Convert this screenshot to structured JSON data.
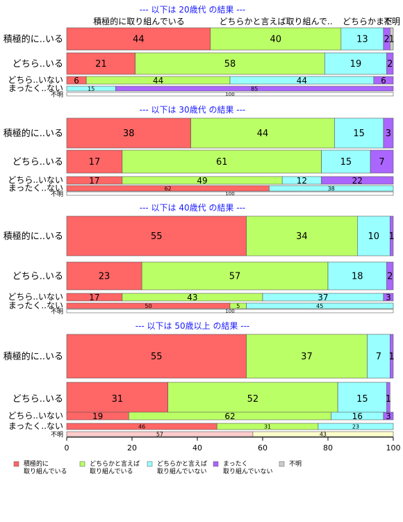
{
  "chart_data": {
    "type": "bar",
    "orientation": "horizontal",
    "stacked": true,
    "xlim": [
      0,
      100
    ],
    "x_ticks": [
      0,
      20,
      40,
      60,
      80,
      100
    ],
    "grid": false,
    "legend_position": "bottom",
    "col_headers": [
      "積極的に取り組んでいる",
      "どちらかと言えば取り組んで..",
      "どちらかまだ",
      "不明"
    ],
    "legend": [
      {
        "label": "積極的に\n取り組んでいる",
        "color": "#ff6666"
      },
      {
        "label": "どちらかと言えば\n取り組んでいる",
        "color": "#bbff66"
      },
      {
        "label": "どちらかと言えば\n取り組んでいない",
        "color": "#99ffff"
      },
      {
        "label": "まったく\n取り組んでいない",
        "color": "#aa66ff"
      },
      {
        "label": "不明",
        "color": "#cccccc"
      }
    ],
    "panels": [
      {
        "title": "--- 以下は 20歳代 の結果 ---",
        "rows": [
          {
            "label": "積極的に..いる",
            "values": [
              44,
              40,
              13,
              2,
              1
            ],
            "value_labels": [
              "44",
              "40",
              "13",
              "2",
              "1"
            ]
          },
          {
            "label": "どちら..いる",
            "values": [
              21,
              58,
              19,
              2
            ],
            "value_labels": [
              "21",
              "58",
              "19",
              "2"
            ]
          },
          {
            "label": "どちら..いない",
            "values": [
              6,
              44,
              44,
              6
            ],
            "value_labels": [
              "6",
              "44",
              "44",
              "6"
            ]
          },
          {
            "label": "まったく..ない",
            "values": [
              0,
              15,
              85
            ],
            "value_labels": [
              "",
              "15",
              "85"
            ],
            "colors": [
              "#ff6666",
              "#99ffff",
              "#aa66ff"
            ]
          },
          {
            "label": "不明",
            "values": [
              100
            ],
            "value_labels": [
              "100"
            ],
            "colors": [
              "#ffffff"
            ]
          }
        ]
      },
      {
        "title": "--- 以下は 30歳代 の結果 ---",
        "rows": [
          {
            "label": "積極的に..いる",
            "values": [
              38,
              44,
              15,
              3
            ],
            "value_labels": [
              "38",
              "44",
              "15",
              "3"
            ]
          },
          {
            "label": "どちら..いる",
            "values": [
              17,
              61,
              15,
              7
            ],
            "value_labels": [
              "17",
              "61",
              "15",
              "7"
            ]
          },
          {
            "label": "どちら..いない",
            "values": [
              17,
              49,
              12,
              22
            ],
            "value_labels": [
              "17",
              "49",
              "12",
              "22"
            ]
          },
          {
            "label": "まったく..ない",
            "values": [
              62,
              38
            ],
            "value_labels": [
              "62",
              "38"
            ],
            "colors": [
              "#ff6666",
              "#99ffff"
            ]
          },
          {
            "label": "不明",
            "values": [
              100
            ],
            "value_labels": [
              "100"
            ],
            "colors": [
              "#ffffff"
            ]
          }
        ]
      },
      {
        "title": "--- 以下は 40歳代 の結果 ---",
        "rows": [
          {
            "label": "積極的に..いる",
            "values": [
              55,
              34,
              10,
              1
            ],
            "value_labels": [
              "55",
              "34",
              "10",
              "1"
            ]
          },
          {
            "label": "どちら..いる",
            "values": [
              23,
              57,
              18,
              2
            ],
            "value_labels": [
              "23",
              "57",
              "18",
              "2"
            ]
          },
          {
            "label": "どちら..いない",
            "values": [
              17,
              43,
              37,
              3
            ],
            "value_labels": [
              "17",
              "43",
              "37",
              "3"
            ]
          },
          {
            "label": "まったく..ない",
            "values": [
              50,
              5,
              45
            ],
            "value_labels": [
              "50",
              "5",
              "45"
            ]
          },
          {
            "label": "不明",
            "values": [
              100
            ],
            "value_labels": [
              "100"
            ],
            "colors": [
              "#ffffff"
            ]
          }
        ]
      },
      {
        "title": "--- 以下は 50歳以上 の結果 ---",
        "rows": [
          {
            "label": "積極的に..いる",
            "values": [
              55,
              37,
              7,
              1
            ],
            "value_labels": [
              "55",
              "37",
              "7",
              "1"
            ]
          },
          {
            "label": "どちら..いる",
            "values": [
              31,
              52,
              15,
              1
            ],
            "value_labels": [
              "31",
              "52",
              "15",
              "1"
            ]
          },
          {
            "label": "どちら..いない",
            "values": [
              19,
              62,
              16,
              3
            ],
            "value_labels": [
              "19",
              "62",
              "16",
              "3"
            ]
          },
          {
            "label": "まったく..ない",
            "values": [
              46,
              31,
              23
            ],
            "value_labels": [
              "46",
              "31",
              "23"
            ]
          },
          {
            "label": "不明",
            "values": [
              57,
              43
            ],
            "value_labels": [
              "57",
              "43"
            ],
            "colors": [
              "#ffcccc",
              "#ffffcc"
            ]
          }
        ]
      }
    ]
  }
}
